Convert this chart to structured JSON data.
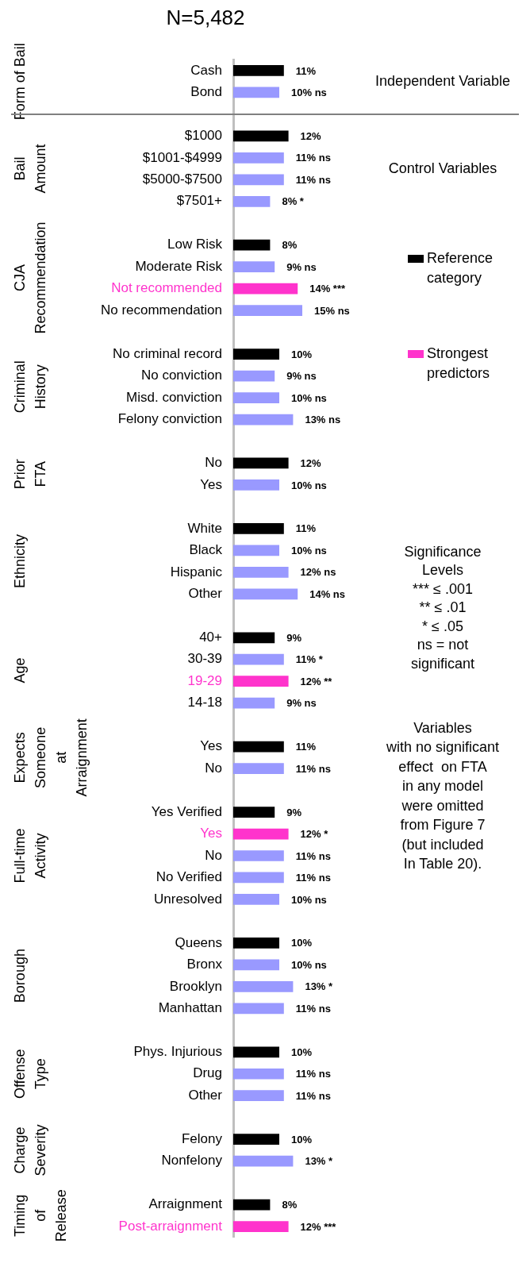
{
  "chart_data": {
    "type": "bar",
    "orientation": "horizontal",
    "stacked": true,
    "title": "N=5,482",
    "categories": [
      "Cash",
      "Bond",
      null,
      "$1000",
      "$1001-$4999",
      "$5000-$7500",
      "$7501+",
      null,
      "Low Risk",
      "Moderate Risk",
      "Not recommended",
      "No recommendation",
      null,
      "No criminal record",
      "No conviction",
      "Misd. conviction",
      "Felony conviction",
      null,
      "No",
      "Yes",
      null,
      "White",
      "Black",
      "Hispanic",
      "Other",
      null,
      "40+",
      "30-39",
      "19-29",
      "14-18",
      null,
      "Yes",
      "No",
      null,
      "Yes Verified",
      "Yes",
      "No",
      "No Verified",
      "Unresolved",
      null,
      "Queens",
      "Bronx",
      "Brooklyn",
      "Manhattan",
      null,
      "Phys. Injurious",
      "Drug",
      "Other",
      null,
      "Felony",
      "Nonfelony",
      null,
      "Arraignment",
      "Post-arraignment"
    ],
    "series": [
      {
        "name": "Reference category",
        "color": "#000000",
        "values": [
          11,
          null,
          null,
          12,
          null,
          null,
          null,
          null,
          8,
          null,
          null,
          null,
          null,
          10,
          null,
          null,
          null,
          null,
          12,
          null,
          null,
          11,
          null,
          null,
          null,
          null,
          9,
          null,
          null,
          null,
          null,
          11,
          null,
          null,
          9,
          null,
          null,
          null,
          null,
          null,
          10,
          null,
          null,
          null,
          null,
          10,
          null,
          null,
          null,
          10,
          null,
          null,
          8,
          null
        ],
        "value_labels": [
          "11%",
          null,
          null,
          "12%",
          null,
          null,
          null,
          null,
          "8%",
          null,
          null,
          null,
          null,
          "10%",
          null,
          null,
          null,
          null,
          "12%",
          null,
          null,
          "11%",
          null,
          null,
          null,
          null,
          "9%",
          null,
          null,
          null,
          null,
          "11%",
          null,
          null,
          "9%",
          null,
          null,
          null,
          null,
          null,
          "10%",
          null,
          null,
          null,
          null,
          "10%",
          null,
          null,
          null,
          "10%",
          null,
          null,
          "8%",
          null
        ]
      },
      {
        "name": "Strongest predictors",
        "color": "#ff33cc",
        "values": [
          null,
          null,
          null,
          null,
          null,
          null,
          null,
          null,
          null,
          null,
          14,
          null,
          null,
          null,
          null,
          null,
          null,
          null,
          null,
          null,
          null,
          null,
          null,
          null,
          null,
          null,
          null,
          null,
          12,
          null,
          null,
          null,
          null,
          null,
          null,
          12,
          null,
          null,
          null,
          null,
          null,
          null,
          null,
          null,
          null,
          null,
          null,
          null,
          null,
          null,
          null,
          null,
          null,
          12
        ],
        "value_labels": [
          null,
          null,
          null,
          null,
          null,
          null,
          null,
          null,
          null,
          null,
          "14% ***",
          null,
          null,
          null,
          null,
          null,
          null,
          null,
          null,
          null,
          null,
          null,
          null,
          null,
          null,
          null,
          null,
          null,
          "12% **",
          null,
          null,
          null,
          null,
          null,
          null,
          "12% *",
          null,
          null,
          null,
          null,
          null,
          null,
          null,
          null,
          null,
          null,
          null,
          null,
          null,
          null,
          null,
          null,
          null,
          "12% ***"
        ]
      },
      {
        "color": "#9999ff",
        "values": [
          null,
          10,
          null,
          null,
          11,
          11,
          8,
          null,
          null,
          9,
          null,
          15,
          null,
          null,
          9,
          10,
          13,
          null,
          null,
          10,
          null,
          null,
          10,
          12,
          14,
          null,
          null,
          11,
          null,
          9,
          null,
          null,
          11,
          null,
          null,
          null,
          11,
          11,
          10,
          null,
          null,
          10,
          13,
          11,
          null,
          null,
          11,
          11,
          null,
          null,
          13,
          null,
          null,
          null
        ],
        "value_labels": [
          null,
          "10% ns",
          null,
          null,
          "11% ns",
          "11% ns",
          "8% *",
          null,
          null,
          "9% ns",
          null,
          "15% ns",
          null,
          null,
          "9% ns",
          "10% ns",
          "13% ns",
          null,
          null,
          "10% ns",
          null,
          null,
          "10% ns",
          "12% ns",
          "14% ns",
          null,
          null,
          "11% *",
          null,
          "9% ns",
          null,
          null,
          "11% ns",
          null,
          null,
          null,
          "11% ns",
          "11% ns",
          "10% ns",
          null,
          null,
          "10% ns",
          "13% *",
          "11% ns",
          null,
          null,
          "11% ns",
          "11% ns",
          null,
          null,
          "13% *",
          null,
          null,
          null
        ]
      }
    ],
    "annotations": [
      "Form of Bail",
      "Bail\nAmount",
      "CJA\nRecommendation",
      "Criminal\nHistory",
      "Prior\nFTA",
      "Ethnicity",
      "Age",
      "Expects\nSomeone\nat\nArraignment",
      "Full-time\nActivity",
      "Borough",
      "Offense\nType",
      "Charge\nSeverity",
      "Timing\nof\nRelease",
      "Independent Variable",
      "Control Variables",
      "Significance\nLevels\n*** ≤ .001\n** ≤ .01\n* ≤ .05\nns = not\nsignificant",
      "Variables\nwith no significant\neffect  on FTA\nin any model\nwere omitted\nfrom Figure 7\n(but included\nIn Table 20)."
    ],
    "legend": "right",
    "tick_labels": "y",
    "grid": false
  }
}
